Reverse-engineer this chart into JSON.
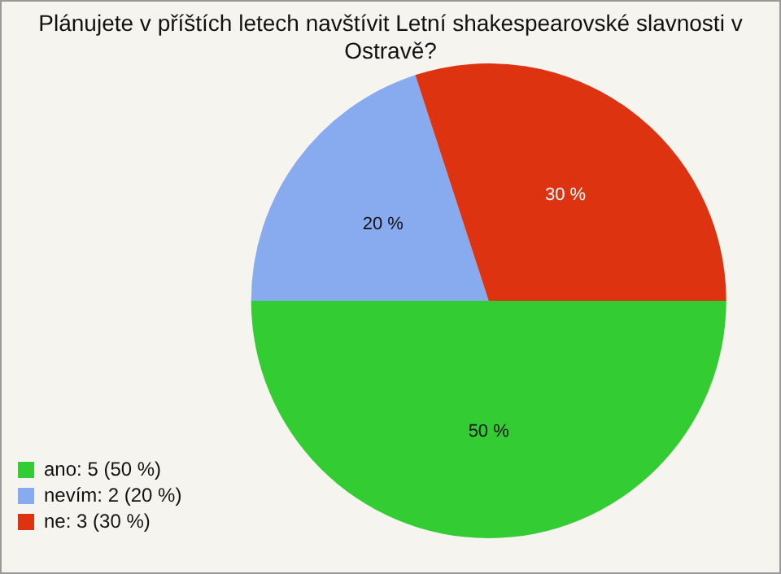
{
  "chart_data": {
    "type": "pie",
    "title": "Plánujete v příštích letech navštívit Letní shakespearovské slavnosti v Ostravě?",
    "categories": [
      "ano: 5 (50 %)",
      "nevím: 2 (20 %)",
      "ne: 3 (30 %)"
    ],
    "values": [
      50,
      20,
      30
    ],
    "colors": [
      "#33cc33",
      "#88aaee",
      "#dd3311"
    ],
    "value_labels": [
      "50 %",
      "20 %",
      "30 %"
    ],
    "legend": "bottom left"
  }
}
